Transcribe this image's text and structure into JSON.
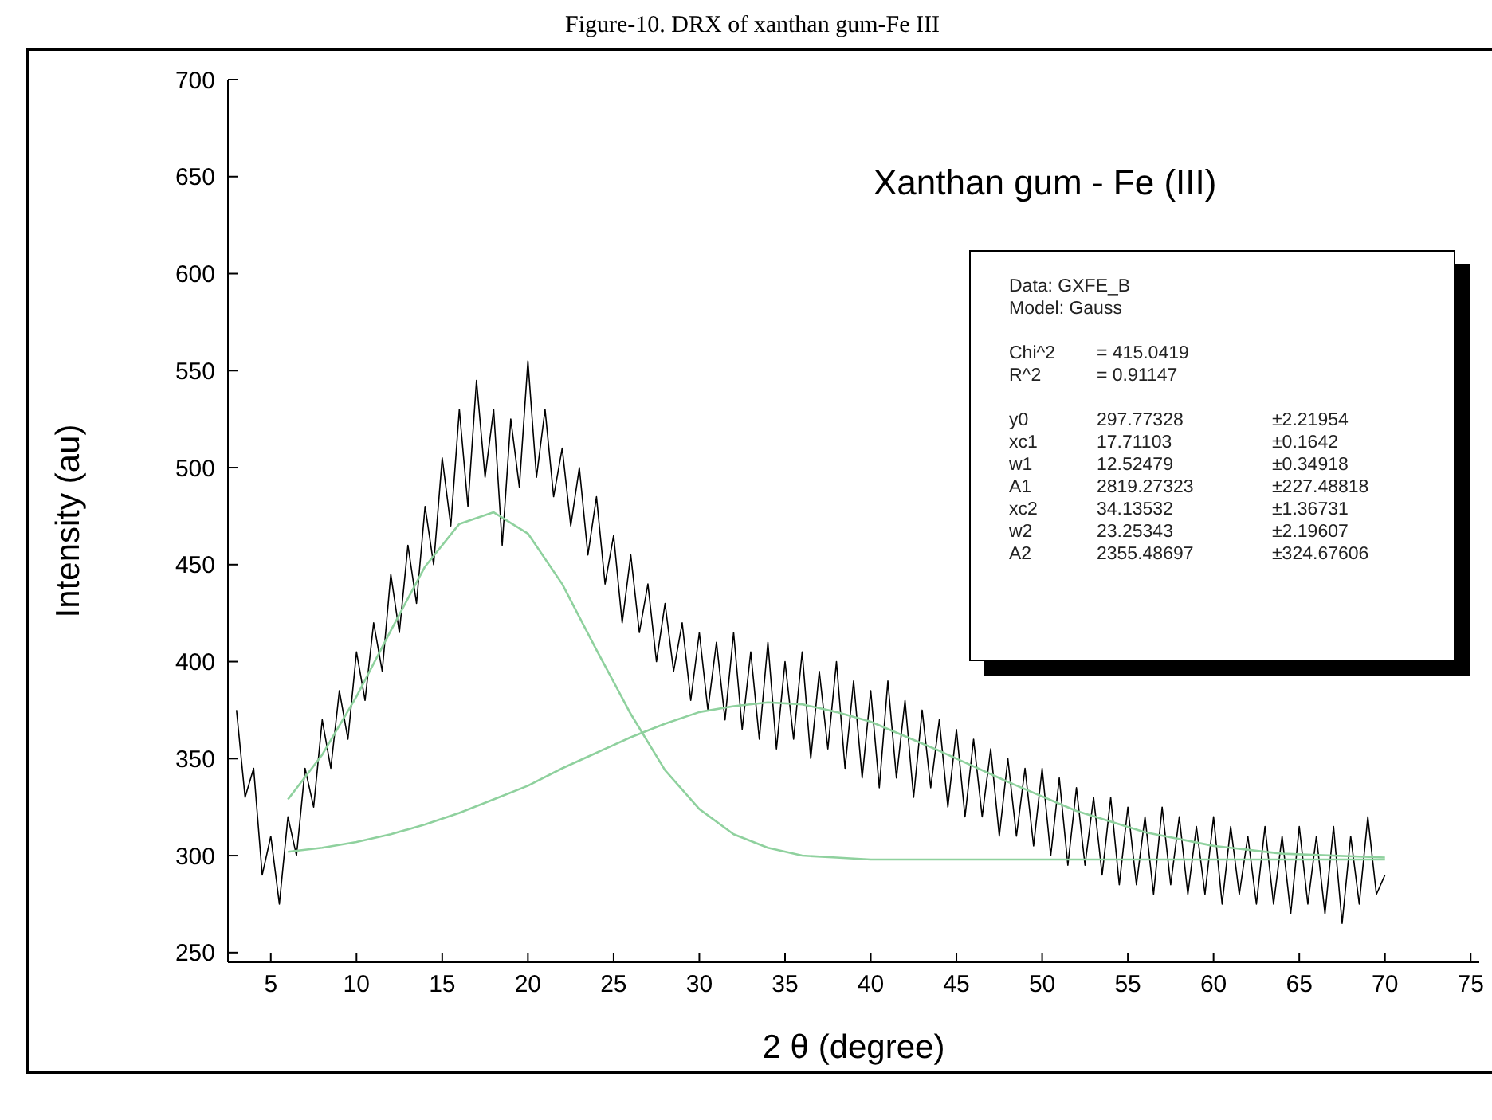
{
  "chart_data": {
    "type": "line",
    "title": "Figure-10. DRX of xanthan gum-Fe III",
    "xlabel": "2 θ (degree)",
    "ylabel": "Intensity (au)",
    "xlim": [
      2.5,
      75.5
    ],
    "xticks": [
      5,
      10,
      15,
      20,
      25,
      30,
      35,
      40,
      45,
      50,
      55,
      60,
      65,
      70,
      75
    ],
    "ylim": [
      245,
      700
    ],
    "yticks": [
      250,
      300,
      350,
      400,
      450,
      500,
      550,
      600,
      650,
      700
    ],
    "grid": false,
    "legend": false,
    "marker": "none",
    "line_style": "solid",
    "annotations": [
      "Xanthan gum - Fe (III)",
      "Data: GXFE_B",
      "Model: Gauss",
      "Chi^2\t= 415.0419",
      "R^2\t= 0.91147",
      "y0\t297.77328\t±2.21954",
      "xc1\t17.71103\t±0.1642",
      "w1\t12.52479\t±0.34918",
      "A1\t2819.27323\t±227.48818",
      "xc2\t34.13532\t±1.36731",
      "w2\t23.25343\t±2.19607",
      "A2\t2355.48697\t±324.67606"
    ],
    "series": [
      {
        "color": "#000000",
        "x": [
          3,
          3.5,
          4,
          4.5,
          5,
          5.5,
          6,
          6.5,
          7,
          7.5,
          8,
          8.5,
          9,
          9.5,
          10,
          10.5,
          11,
          11.5,
          12,
          12.5,
          13,
          13.5,
          14,
          14.5,
          15,
          15.5,
          16,
          16.5,
          17,
          17.5,
          18,
          18.5,
          19,
          19.5,
          20,
          20.5,
          21,
          21.5,
          22,
          22.5,
          23,
          23.5,
          24,
          24.5,
          25,
          25.5,
          26,
          26.5,
          27,
          27.5,
          28,
          28.5,
          29,
          29.5,
          30,
          30.5,
          31,
          31.5,
          32,
          32.5,
          33,
          33.5,
          34,
          34.5,
          35,
          35.5,
          36,
          36.5,
          37,
          37.5,
          38,
          38.5,
          39,
          39.5,
          40,
          40.5,
          41,
          41.5,
          42,
          42.5,
          43,
          43.5,
          44,
          44.5,
          45,
          45.5,
          46,
          46.5,
          47,
          47.5,
          48,
          48.5,
          49,
          49.5,
          50,
          50.5,
          51,
          51.5,
          52,
          52.5,
          53,
          53.5,
          54,
          54.5,
          55,
          55.5,
          56,
          56.5,
          57,
          57.5,
          58,
          58.5,
          59,
          59.5,
          60,
          60.5,
          61,
          61.5,
          62,
          62.5,
          63,
          63.5,
          64,
          64.5,
          65,
          65.5,
          66,
          66.5,
          67,
          67.5,
          68,
          68.5,
          69,
          69.5,
          70
        ],
        "values": [
          375,
          330,
          345,
          290,
          310,
          275,
          320,
          300,
          345,
          325,
          370,
          345,
          385,
          360,
          405,
          380,
          420,
          395,
          445,
          415,
          460,
          430,
          480,
          450,
          505,
          470,
          530,
          480,
          545,
          495,
          530,
          460,
          525,
          490,
          555,
          495,
          530,
          485,
          510,
          470,
          500,
          455,
          485,
          440,
          465,
          420,
          455,
          415,
          440,
          400,
          430,
          395,
          420,
          380,
          415,
          375,
          410,
          370,
          415,
          365,
          405,
          360,
          410,
          355,
          400,
          360,
          405,
          350,
          395,
          355,
          400,
          345,
          390,
          340,
          385,
          335,
          390,
          340,
          380,
          330,
          375,
          335,
          370,
          325,
          365,
          320,
          360,
          320,
          355,
          310,
          350,
          310,
          345,
          305,
          345,
          300,
          340,
          295,
          335,
          295,
          330,
          290,
          330,
          285,
          325,
          285,
          320,
          280,
          325,
          285,
          320,
          280,
          315,
          280,
          320,
          275,
          315,
          280,
          310,
          275,
          315,
          275,
          310,
          270,
          315,
          275,
          310,
          270,
          315,
          265,
          310,
          275,
          320,
          280,
          290
        ]
      },
      {
        "color": "#8fd19e",
        "x": [
          6,
          8,
          10,
          12,
          14,
          16,
          18,
          20,
          22,
          24,
          26,
          28,
          30,
          32,
          34,
          36,
          38,
          40,
          44,
          48,
          52,
          56,
          60,
          64,
          70
        ],
        "values": [
          329,
          352,
          382,
          416,
          449,
          471,
          477,
          466,
          440,
          406,
          373,
          344,
          324,
          311,
          304,
          300,
          299,
          298,
          298,
          298,
          298,
          298,
          298,
          298,
          298
        ]
      },
      {
        "color": "#8fd19e",
        "x": [
          6,
          8,
          10,
          12,
          14,
          16,
          18,
          20,
          22,
          24,
          26,
          28,
          30,
          32,
          34,
          36,
          38,
          40,
          44,
          48,
          52,
          56,
          60,
          64,
          70
        ],
        "values": [
          302,
          304,
          307,
          311,
          316,
          322,
          329,
          336,
          345,
          353,
          361,
          368,
          374,
          377,
          379,
          378,
          374,
          369,
          354,
          338,
          323,
          312,
          305,
          301,
          299
        ]
      }
    ]
  }
}
